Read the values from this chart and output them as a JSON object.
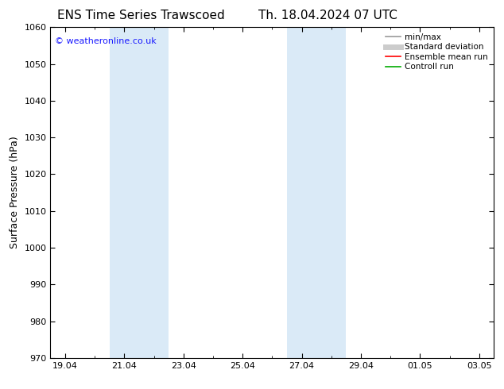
{
  "title_left": "ENS Time Series Trawscoed",
  "title_right": "Th. 18.04.2024 07 UTC",
  "ylabel": "Surface Pressure (hPa)",
  "ylim": [
    970,
    1060
  ],
  "yticks": [
    970,
    980,
    990,
    1000,
    1010,
    1020,
    1030,
    1040,
    1050,
    1060
  ],
  "xtick_labels": [
    "19.04",
    "21.04",
    "23.04",
    "25.04",
    "27.04",
    "29.04",
    "01.05",
    "03.05"
  ],
  "xtick_positions": [
    0,
    2,
    4,
    6,
    8,
    10,
    12,
    14
  ],
  "xlim": [
    -0.5,
    14.5
  ],
  "bg_color": "#ffffff",
  "plot_bg_color": "#ffffff",
  "band_color": "#daeaf7",
  "bands": [
    {
      "x_start": 1.5,
      "x_end": 2.5
    },
    {
      "x_start": 2.5,
      "x_end": 3.5
    },
    {
      "x_start": 7.5,
      "x_end": 8.5
    },
    {
      "x_start": 8.5,
      "x_end": 9.5
    }
  ],
  "copyright_text": "© weatheronline.co.uk",
  "copyright_color": "#1a1aff",
  "legend_items": [
    {
      "label": "min/max",
      "color": "#999999",
      "lw": 1.2
    },
    {
      "label": "Standard deviation",
      "color": "#cccccc",
      "lw": 5
    },
    {
      "label": "Ensemble mean run",
      "color": "#ff0000",
      "lw": 1.2
    },
    {
      "label": "Controll run",
      "color": "#00aa00",
      "lw": 1.2
    }
  ],
  "tick_color": "#000000",
  "spine_color": "#000000",
  "title_fontsize": 11,
  "axis_label_fontsize": 9,
  "tick_fontsize": 8,
  "legend_fontsize": 7.5,
  "copyright_fontsize": 8
}
